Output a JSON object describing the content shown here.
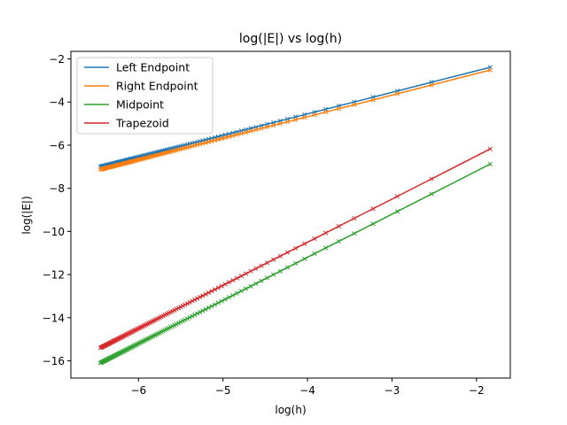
{
  "chart_data": {
    "type": "line",
    "title": "log(|E|) vs log(h)",
    "xlabel": "log(h)",
    "ylabel": "log(|E|)",
    "xlim": [
      -6.8,
      -1.6
    ],
    "ylim": [
      -16.8,
      -1.65
    ],
    "xticks": [
      -6,
      -5,
      -4,
      -3,
      -2
    ],
    "yticks": [
      -16,
      -14,
      -12,
      -10,
      -8,
      -6,
      -4,
      -2
    ],
    "grid": false,
    "legend_position": "upper-left",
    "marker": "x",
    "x": [
      -1.8379,
      -2.531,
      -2.9365,
      -3.2242,
      -3.4473,
      -3.6297,
      -3.7839,
      -3.9174,
      -4.0352,
      -4.1406,
      -4.2359,
      -4.3229,
      -4.403,
      -4.4771,
      -4.5461,
      -4.6106,
      -4.6713,
      -4.7284,
      -4.7825,
      -4.8338,
      -4.8825,
      -4.9291,
      -4.9736,
      -5.0161,
      -5.057,
      -5.0962,
      -5.134,
      -5.1703,
      -5.2054,
      -5.2393,
      -5.272,
      -5.3038,
      -5.3345,
      -5.3642,
      -5.3931,
      -5.4212,
      -5.4485,
      -5.4751,
      -5.5009,
      -5.5262,
      -5.5507,
      -5.5747,
      -5.5982,
      -5.621,
      -5.6434,
      -5.6652,
      -5.6866,
      -5.7075,
      -5.7279,
      -5.7479,
      -5.7675,
      -5.7868,
      -5.8056,
      -5.8241,
      -5.8422,
      -5.86,
      -5.8775,
      -5.8946,
      -5.9115,
      -5.928,
      -5.9443,
      -5.9603,
      -5.9761,
      -5.9915,
      -6.0067,
      -6.0217,
      -6.0365,
      -6.051,
      -6.0652,
      -6.0793,
      -6.0931,
      -6.1067,
      -6.1202,
      -6.1334,
      -6.1464,
      -6.1593,
      -6.1719,
      -6.1844,
      -6.1967,
      -6.2088,
      -6.2208,
      -6.2326,
      -6.2443,
      -6.2558,
      -6.2671,
      -6.2783,
      -6.2894,
      -6.3003,
      -6.3111,
      -6.3218,
      -6.3323,
      -6.3427,
      -6.353,
      -6.3631,
      -6.3732,
      -6.3831,
      -6.3929,
      -6.4026,
      -6.4122,
      -6.4216,
      -6.431,
      -6.4403,
      -6.4495
    ],
    "series": [
      {
        "name": "Left Endpoint",
        "color": "#1f77b4",
        "intercept": -0.55,
        "slope": 1.0
      },
      {
        "name": "Right Endpoint",
        "color": "#ff7f0e",
        "intercept": -0.68,
        "slope": 1.0
      },
      {
        "name": "Midpoint",
        "color": "#2ca02c",
        "intercept": -3.2,
        "slope": 2.0
      },
      {
        "name": "Trapezoid",
        "color": "#d62728",
        "intercept": -2.5,
        "slope": 2.0
      }
    ]
  }
}
